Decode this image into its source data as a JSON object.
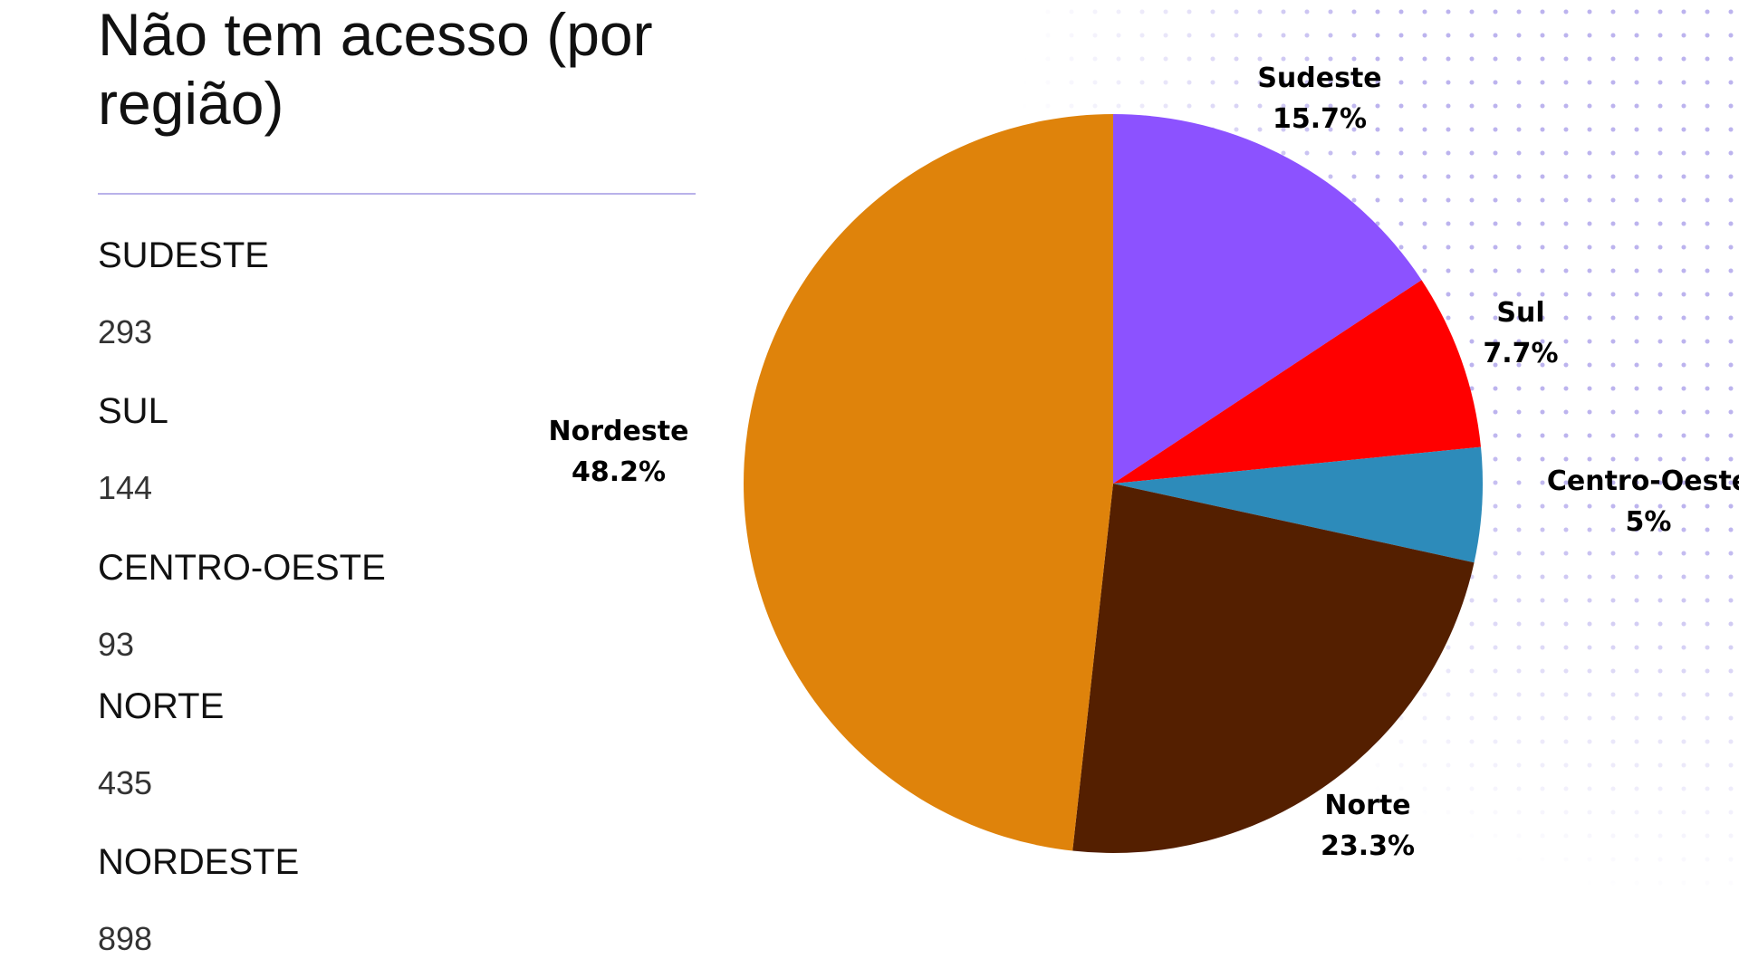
{
  "title": "Não tem acesso (por região)",
  "stats": [
    {
      "label": "SUDESTE",
      "value": "293"
    },
    {
      "label": "SUL",
      "value": "144"
    },
    {
      "label": "CENTRO-OESTE",
      "value": "93"
    },
    {
      "label": "NORTE",
      "value": "435"
    },
    {
      "label": "NORDESTE",
      "value": "898"
    }
  ],
  "colors": {
    "accent_rule": "#b9b2ea",
    "dots": "#bcb3ee"
  },
  "chart_data": {
    "type": "pie",
    "title": "",
    "start": "top",
    "direction": "clockwise",
    "slices": [
      {
        "name": "Sudeste",
        "value": 15.7,
        "display": "15.7%",
        "color": "#8c52ff"
      },
      {
        "name": "Sul",
        "value": 7.7,
        "display": "7.7%",
        "color": "#ff0000"
      },
      {
        "name": "Centro-Oeste",
        "value": 5,
        "display": "5%",
        "color": "#2d8bba"
      },
      {
        "name": "Norte",
        "value": 23.3,
        "display": "23.3%",
        "color": "#541f00"
      },
      {
        "name": "Nordeste",
        "value": 48.2,
        "display": "48.2%",
        "color": "#df830b"
      }
    ]
  }
}
